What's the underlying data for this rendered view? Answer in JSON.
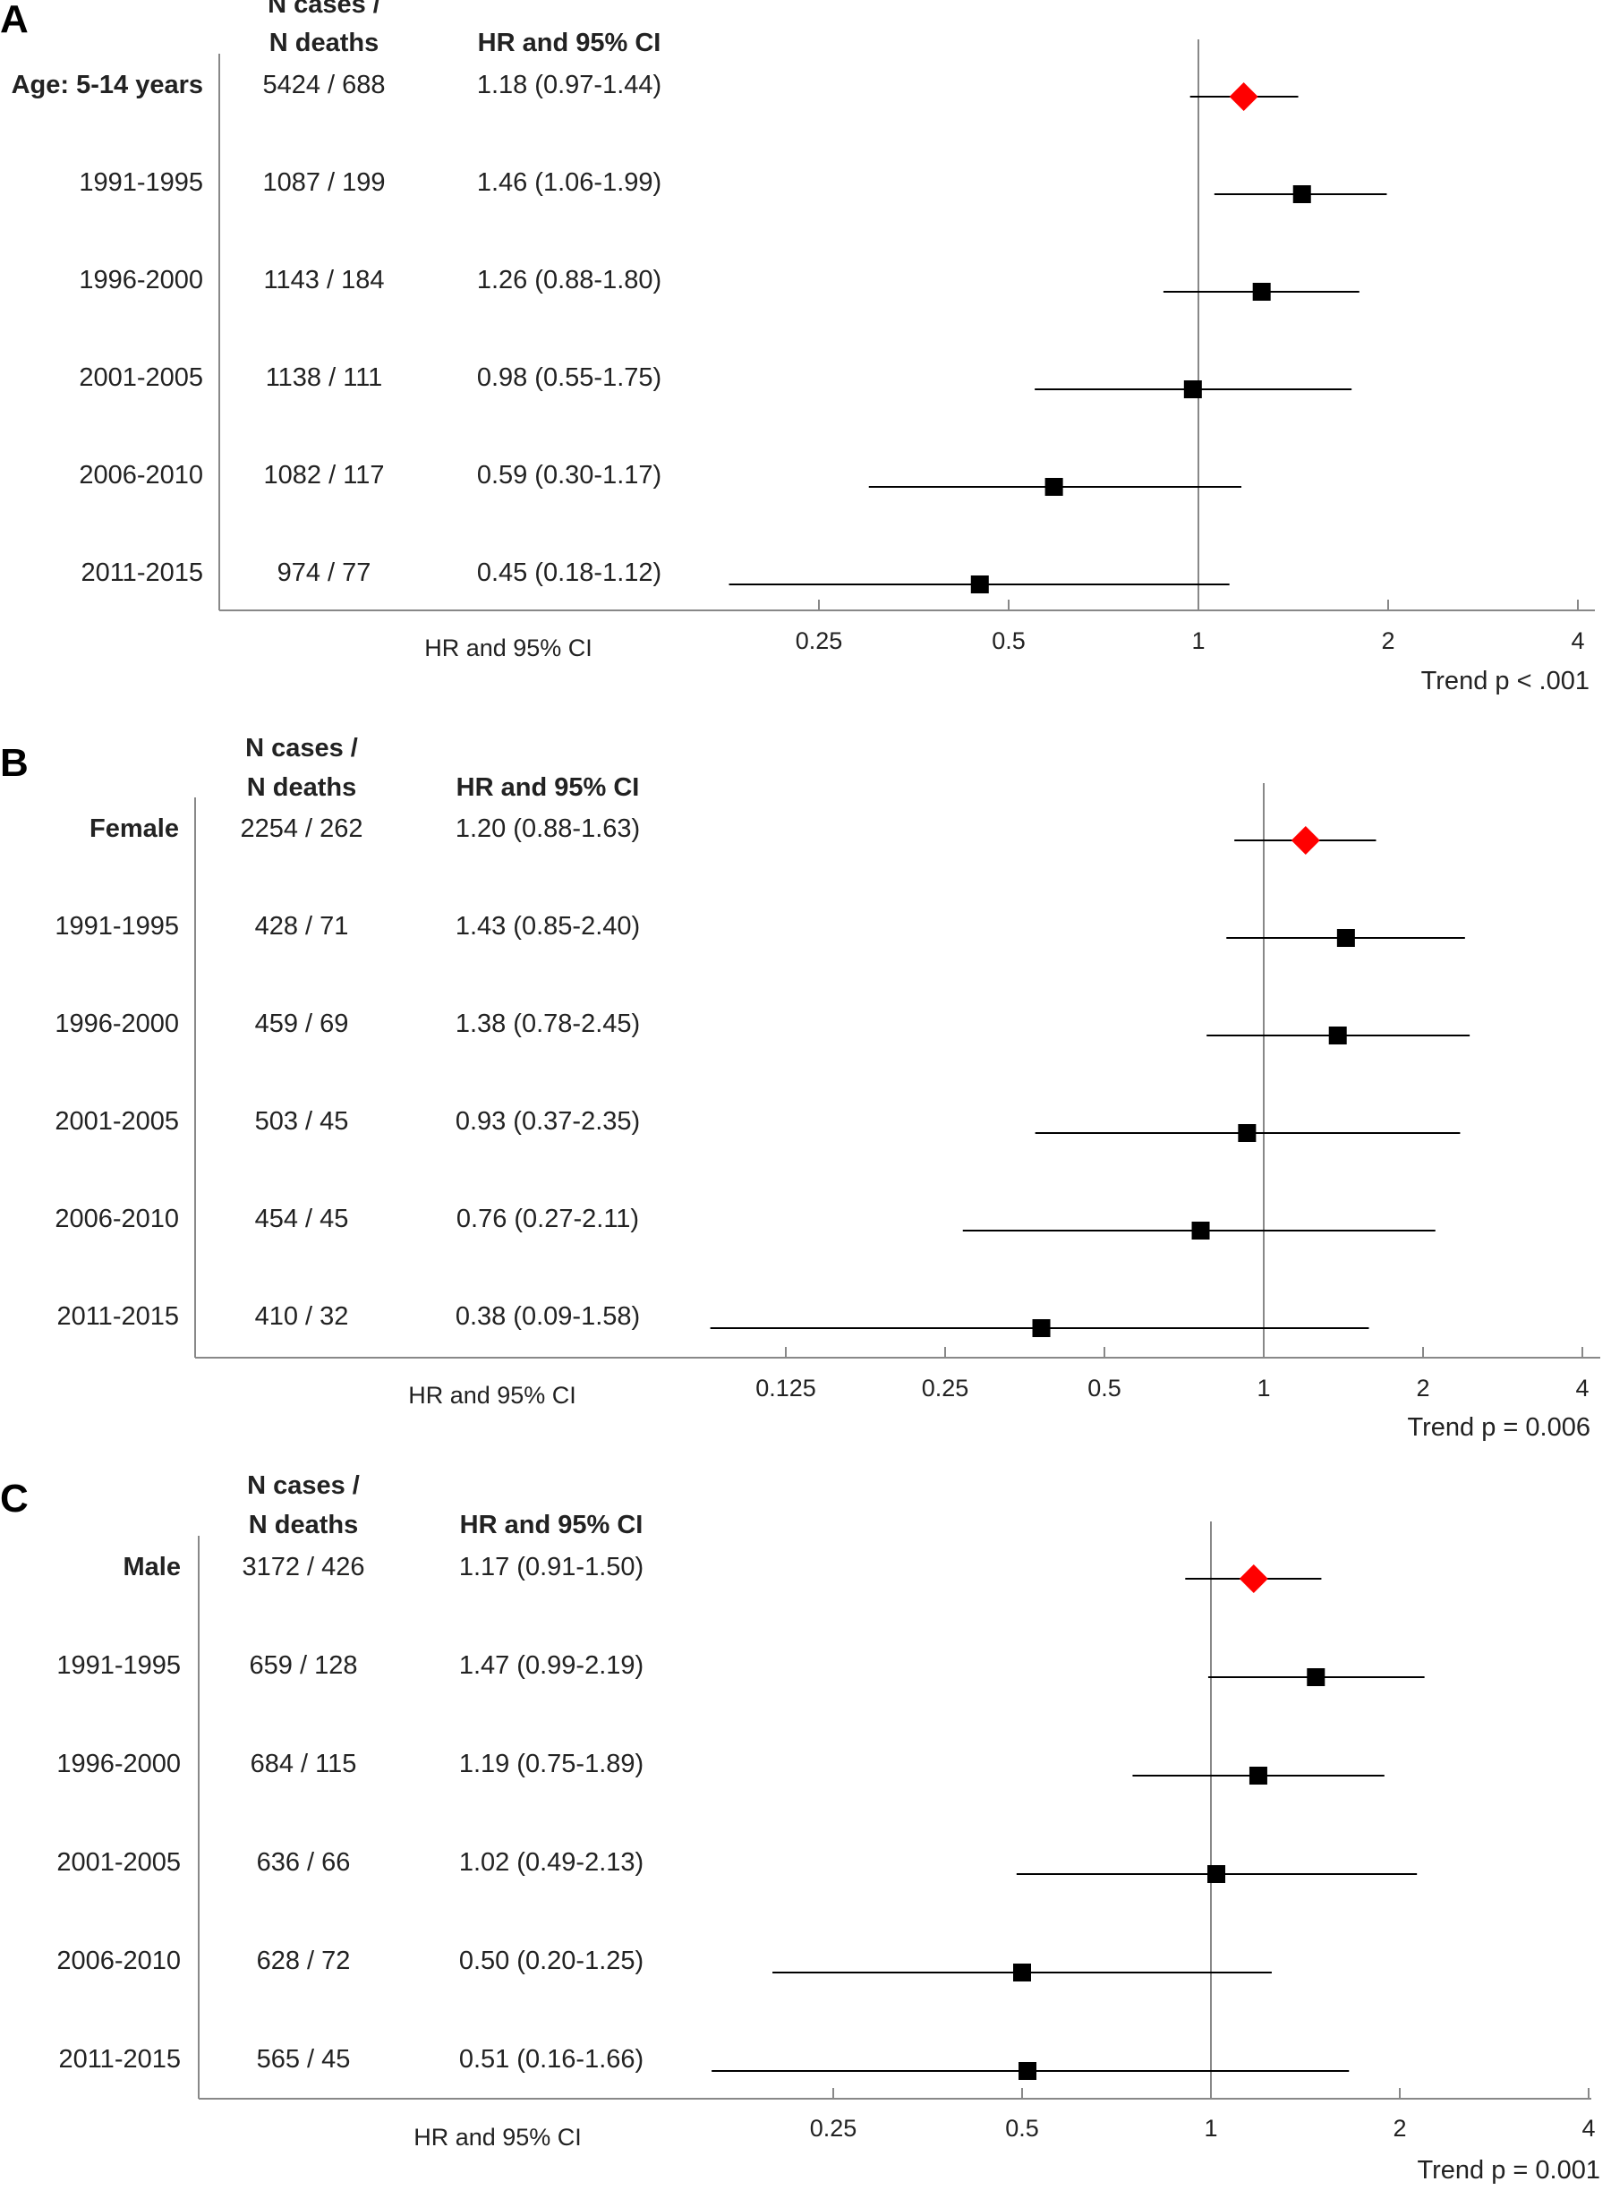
{
  "chart_data": [
    {
      "type": "forest",
      "panel": "A",
      "headers": {
        "cases": [
          "N cases /",
          "N deaths"
        ],
        "hr": "HR and 95% CI"
      },
      "axis_label": "HR and 95% CI",
      "scale": "log2",
      "xlim": [
        0.125,
        4
      ],
      "ticks": [
        "0.25",
        "0.5",
        "1",
        "2",
        "4"
      ],
      "reference_line": 1,
      "trend": "Trend p < .001",
      "rows": [
        {
          "label": "Age: 5-14 years",
          "cases": "5424 / 688",
          "hr_text": "1.18 (0.97-1.44)",
          "hr": 1.18,
          "lo": 0.97,
          "hi": 1.44,
          "marker": "diamond"
        },
        {
          "label": "1991-1995",
          "cases": "1087 / 199",
          "hr_text": "1.46 (1.06-1.99)",
          "hr": 1.46,
          "lo": 1.06,
          "hi": 1.99,
          "marker": "square"
        },
        {
          "label": "1996-2000",
          "cases": "1143 / 184",
          "hr_text": "1.26 (0.88-1.80)",
          "hr": 1.26,
          "lo": 0.88,
          "hi": 1.8,
          "marker": "square"
        },
        {
          "label": "2001-2005",
          "cases": "1138 / 111",
          "hr_text": "0.98 (0.55-1.75)",
          "hr": 0.98,
          "lo": 0.55,
          "hi": 1.75,
          "marker": "square"
        },
        {
          "label": "2006-2010",
          "cases": "1082 / 117",
          "hr_text": "0.59 (0.30-1.17)",
          "hr": 0.59,
          "lo": 0.3,
          "hi": 1.17,
          "marker": "square"
        },
        {
          "label": "2011-2015",
          "cases": "974 / 77",
          "hr_text": "0.45 (0.18-1.12)",
          "hr": 0.45,
          "lo": 0.18,
          "hi": 1.12,
          "marker": "square"
        }
      ]
    },
    {
      "type": "forest",
      "panel": "B",
      "headers": {
        "cases": [
          "N cases /",
          "N deaths"
        ],
        "hr": "HR and 95% CI"
      },
      "axis_label": "HR and 95% CI",
      "scale": "log2",
      "xlim": [
        0.0625,
        4
      ],
      "ticks": [
        "0.125",
        "0.25",
        "0.5",
        "1",
        "2",
        "4"
      ],
      "reference_line": 1,
      "trend": "Trend p = 0.006",
      "rows": [
        {
          "label": "Female",
          "cases": "2254 / 262",
          "hr_text": "1.20 (0.88-1.63)",
          "hr": 1.2,
          "lo": 0.88,
          "hi": 1.63,
          "marker": "diamond"
        },
        {
          "label": "1991-1995",
          "cases": "428 / 71",
          "hr_text": "1.43 (0.85-2.40)",
          "hr": 1.43,
          "lo": 0.85,
          "hi": 2.4,
          "marker": "square"
        },
        {
          "label": "1996-2000",
          "cases": "459 / 69",
          "hr_text": "1.38 (0.78-2.45)",
          "hr": 1.38,
          "lo": 0.78,
          "hi": 2.45,
          "marker": "square"
        },
        {
          "label": "2001-2005",
          "cases": "503 / 45",
          "hr_text": "0.93 (0.37-2.35)",
          "hr": 0.93,
          "lo": 0.37,
          "hi": 2.35,
          "marker": "square"
        },
        {
          "label": "2006-2010",
          "cases": "454 / 45",
          "hr_text": "0.76 (0.27-2.11)",
          "hr": 0.76,
          "lo": 0.27,
          "hi": 2.11,
          "marker": "square"
        },
        {
          "label": "2011-2015",
          "cases": "410 / 32",
          "hr_text": "0.38 (0.09-1.58)",
          "hr": 0.38,
          "lo": 0.09,
          "hi": 1.58,
          "marker": "square"
        }
      ]
    },
    {
      "type": "forest",
      "panel": "C",
      "headers": {
        "cases": [
          "N cases /",
          "N deaths"
        ],
        "hr": "HR and 95% CI"
      },
      "axis_label": "HR and 95% CI",
      "scale": "log2",
      "xlim": [
        0.125,
        4
      ],
      "ticks": [
        "0.25",
        "0.5",
        "1",
        "2",
        "4"
      ],
      "reference_line": 1,
      "trend": "Trend p = 0.001",
      "rows": [
        {
          "label": "Male",
          "cases": "3172 / 426",
          "hr_text": "1.17 (0.91-1.50)",
          "hr": 1.17,
          "lo": 0.91,
          "hi": 1.5,
          "marker": "diamond"
        },
        {
          "label": "1991-1995",
          "cases": "659 / 128",
          "hr_text": "1.47 (0.99-2.19)",
          "hr": 1.47,
          "lo": 0.99,
          "hi": 2.19,
          "marker": "square"
        },
        {
          "label": "1996-2000",
          "cases": "684 / 115",
          "hr_text": "1.19 (0.75-1.89)",
          "hr": 1.19,
          "lo": 0.75,
          "hi": 1.89,
          "marker": "square"
        },
        {
          "label": "2001-2005",
          "cases": "636 / 66",
          "hr_text": "1.02 (0.49-2.13)",
          "hr": 1.02,
          "lo": 0.49,
          "hi": 2.13,
          "marker": "square"
        },
        {
          "label": "2006-2010",
          "cases": "628 / 72",
          "hr_text": "0.50 (0.20-1.25)",
          "hr": 0.5,
          "lo": 0.2,
          "hi": 1.25,
          "marker": "square"
        },
        {
          "label": "2011-2015",
          "cases": "565 / 45",
          "hr_text": "0.51 (0.16-1.66)",
          "hr": 0.51,
          "lo": 0.16,
          "hi": 1.66,
          "marker": "square"
        }
      ]
    }
  ],
  "colors": {
    "overall_marker": "#ff0000",
    "subgroup_marker": "#000000",
    "axis": "#888888",
    "ci_line": "#000000"
  }
}
